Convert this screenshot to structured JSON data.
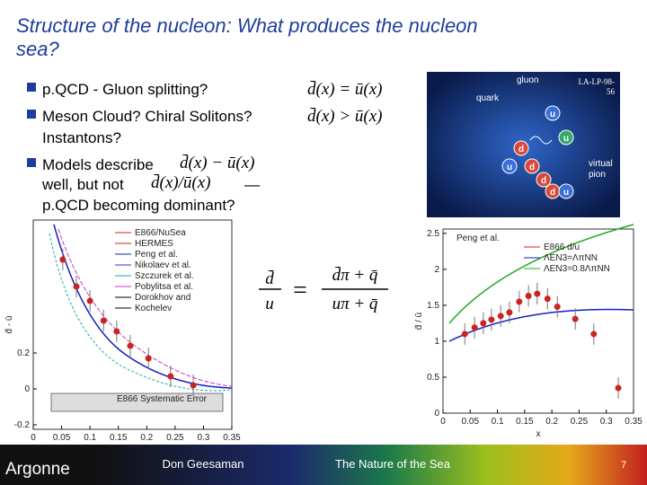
{
  "header": {
    "title_line1": "Structure of the nucleon:  What produces the nucleon",
    "title_line2": "sea?"
  },
  "bullets": [
    {
      "text": "p.QCD - Gluon splitting?",
      "formula": "d̄(x) = ū(x)"
    },
    {
      "text": "Meson Cloud?  Chiral Solitons?",
      "formula": "d̄(x) > ū(x)",
      "cont": "Instantons?"
    },
    {
      "text": "Models describe",
      "formula": "d̄(x) − ū(x)",
      "line2": "well, but not",
      "formula2": "d̄(x)/ū(x)",
      "dash": "—",
      "line3": "p.QCD becoming dominant?"
    }
  ],
  "figure": {
    "labels": [
      "gluon",
      "quark",
      "virtual",
      "pion"
    ],
    "ref1": "LA-LP-98-",
    "ref2": "56",
    "particles": [
      "u",
      "d",
      "u",
      "d",
      "u",
      "d",
      "u",
      "d"
    ]
  },
  "ratio_formula": {
    "lhs_num": "d̄",
    "lhs_den": "u",
    "eq": "=",
    "rhs_num": "d̄π + q̄",
    "rhs_den": "uπ + q̄"
  },
  "plots": [
    {
      "xlabel": "x",
      "ylabel": "d̄ - ū",
      "xlim": [
        0,
        0.35
      ],
      "ylim": [
        -0.225,
        0.94
      ],
      "xticks": [
        0,
        0.05,
        0.1,
        0.15,
        0.2,
        0.25,
        0.3,
        0.35
      ],
      "yticks": [
        -0.2,
        0,
        0.2
      ],
      "legend": [
        "E866/NuSea",
        "HERMES",
        "Peng et al.",
        "Nikolaev et al.",
        "Szczurek et al.",
        "Pobylitsa et al.",
        "Dorokhov and",
        "Kochelev"
      ],
      "note": "E866 Systematic Error",
      "x": [
        0.052,
        0.076,
        0.1,
        0.124,
        0.147,
        0.171,
        0.203,
        0.242,
        0.282
      ],
      "values": [
        0.72,
        0.57,
        0.49,
        0.38,
        0.32,
        0.24,
        0.17,
        0.07,
        0.02
      ]
    },
    {
      "xlabel": "x",
      "ylabel": "d̄ / ū",
      "xlim": [
        0,
        0.35
      ],
      "ylim": [
        0,
        2.56
      ],
      "xticks": [
        0,
        0.05,
        0.1,
        0.15,
        0.2,
        0.25,
        0.3,
        0.35
      ],
      "yticks": [
        0,
        0.5,
        1,
        1.5,
        2,
        2.5
      ],
      "legend": [
        "E866 d/u",
        "ΛEN3=ΛπNN",
        "ΛEN3=0.8ΛπNN"
      ],
      "note": "Peng et al.",
      "x": [
        0.04,
        0.058,
        0.074,
        0.089,
        0.106,
        0.122,
        0.14,
        0.157,
        0.173,
        0.192,
        0.21,
        0.243,
        0.277,
        0.322
      ],
      "values": [
        1.1,
        1.19,
        1.25,
        1.3,
        1.35,
        1.4,
        1.55,
        1.63,
        1.66,
        1.59,
        1.48,
        1.31,
        1.1,
        0.35
      ]
    }
  ],
  "footer": {
    "logo": "Argonne",
    "presenter": "Don Geesaman",
    "talk": "The Nature of the Sea",
    "page": "7"
  }
}
